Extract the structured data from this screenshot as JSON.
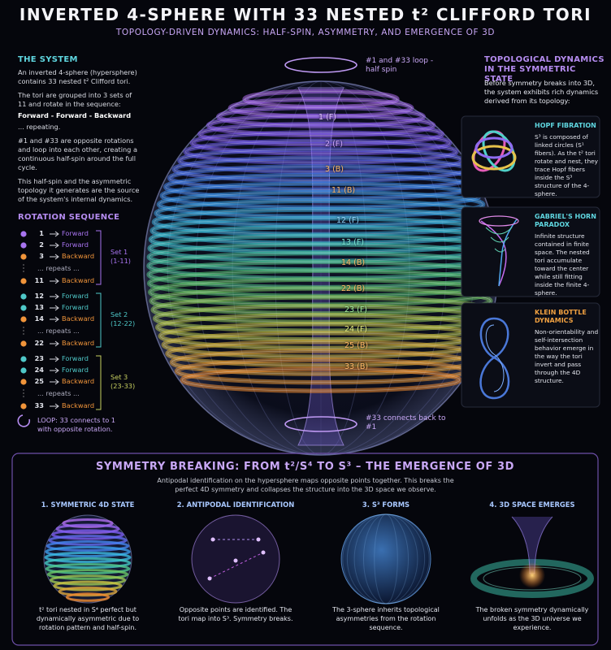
{
  "header": {
    "title": "INVERTED 4-SPHERE WITH 33 NESTED t² CLIFFORD TORI",
    "subtitle": "TOPOLOGY-DRIVEN DYNAMICS: HALF-SPIN, ASYMMETRY, AND EMERGENCE OF 3D"
  },
  "system": {
    "heading": "THE SYSTEM",
    "paragraphs": [
      "An inverted 4-sphere (hypersphere) contains 33 nested t² Clifford tori.",
      "The tori are grouped into 3 sets of 11 and rotate in the sequence:",
      "Forward - Forward - Backward",
      "... repeating.",
      "#1 and #33 are opposite rotations and loop into each other, creating a continuous half-spin around the full cycle.",
      "This half-spin and the asymmetric topology it generates are the source of the system's internal dynamics."
    ]
  },
  "rotation": {
    "heading": "ROTATION SEQUENCE",
    "sets": [
      {
        "label": "Set 1",
        "range": "(1-11)",
        "repeats": "... repeats ...",
        "rows": [
          {
            "n": 1,
            "dir": "Forward"
          },
          {
            "n": 2,
            "dir": "Forward"
          },
          {
            "n": 3,
            "dir": "Backward"
          },
          {
            "n": 11,
            "dir": "Backward"
          }
        ]
      },
      {
        "label": "Set 2",
        "range": "(12-22)",
        "repeats": "... repeats ...",
        "rows": [
          {
            "n": 12,
            "dir": "Forward"
          },
          {
            "n": 13,
            "dir": "Forward"
          },
          {
            "n": 14,
            "dir": "Backward"
          },
          {
            "n": 22,
            "dir": "Backward"
          }
        ]
      },
      {
        "label": "Set 3",
        "range": "(23-33)",
        "repeats": "... repeats ...",
        "rows": [
          {
            "n": 23,
            "dir": "Forward"
          },
          {
            "n": 24,
            "dir": "Forward"
          },
          {
            "n": 25,
            "dir": "Backward"
          },
          {
            "n": 33,
            "dir": "Backward"
          }
        ]
      }
    ],
    "loop": "LOOP: 33 connects to 1 with opposite rotation."
  },
  "sphere": {
    "top_note": "#1 and #33 loop - half spin",
    "bottom_note": "#33 connects back to #1",
    "rings": [
      "1 (F)",
      "2 (F)",
      "3 (B)",
      "11 (B)",
      "12 (F)",
      "13 (F)",
      "14 (B)",
      "22 (B)",
      "23 (F)",
      "24 (F)",
      "25 (B)",
      "33 (B)"
    ]
  },
  "dynamics": {
    "heading": "TOPOLOGICAL DYNAMICS IN THE SYMMETRIC STATE",
    "intro": "Before symmetry breaks into 3D, the system exhibits rich dynamics derived from its topology:",
    "cards": [
      {
        "title": "HOPF FIBRATION",
        "text": "S³ is composed of linked circles (S¹ fibers). As the t² tori rotate and nest, they trace Hopf fibers inside the S³ structure of the 4-sphere."
      },
      {
        "title": "GABRIEL'S HORN PARADOX",
        "text": "Infinite structure contained in finite space. The nested tori accumulate toward the center while still fitting inside the finite 4-sphere."
      },
      {
        "title": "KLEIN BOTTLE DYNAMICS",
        "text": "Non-orientability and self-intersection behavior emerge in the way the tori invert and pass through the 4D structure."
      }
    ]
  },
  "symmetry_breaking": {
    "title": "SYMMETRY BREAKING: FROM t²/S⁴ TO S³ – THE EMERGENCE OF 3D",
    "description": "Antipodal identification on the hypersphere maps opposite points together. This breaks the perfect 4D symmetry and collapses the structure into the 3D space we observe.",
    "panels": [
      {
        "title": "1. SYMMETRIC 4D STATE",
        "caption": "t² tori nested in S⁴ perfect but dynamically asymmetric due to rotation pattern and half-spin."
      },
      {
        "title": "2. ANTIPODAL IDENTIFICATION",
        "caption": "Opposite points are identified. The tori map into S³. Symmetry breaks."
      },
      {
        "title": "3. S³ FORMS",
        "caption": "The 3-sphere inherits topological asymmetries from the rotation sequence."
      },
      {
        "title": "4. 3D SPACE EMERGES",
        "caption": "The broken symmetry dynamically unfolds as the 3D universe we experience."
      }
    ]
  }
}
